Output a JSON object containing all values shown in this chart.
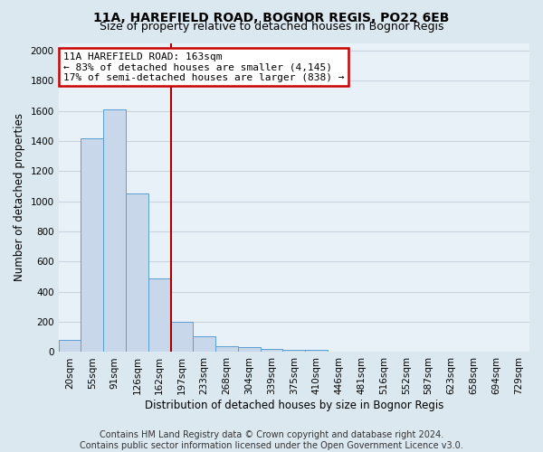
{
  "title_line1": "11A, HAREFIELD ROAD, BOGNOR REGIS, PO22 6EB",
  "title_line2": "Size of property relative to detached houses in Bognor Regis",
  "xlabel": "Distribution of detached houses by size in Bognor Regis",
  "ylabel": "Number of detached properties",
  "footer1": "Contains HM Land Registry data © Crown copyright and database right 2024.",
  "footer2": "Contains public sector information licensed under the Open Government Licence v3.0.",
  "bins": [
    "20sqm",
    "55sqm",
    "91sqm",
    "126sqm",
    "162sqm",
    "197sqm",
    "233sqm",
    "268sqm",
    "304sqm",
    "339sqm",
    "375sqm",
    "410sqm",
    "446sqm",
    "481sqm",
    "516sqm",
    "552sqm",
    "587sqm",
    "623sqm",
    "658sqm",
    "694sqm",
    "729sqm"
  ],
  "values": [
    80,
    1420,
    1610,
    1050,
    490,
    200,
    105,
    40,
    30,
    20,
    15,
    15,
    0,
    0,
    0,
    0,
    0,
    0,
    0,
    0,
    0
  ],
  "bar_color": "#c8d8ea",
  "bar_edge_color": "#5a9fd4",
  "vline_color": "#aa0000",
  "vline_bin_index": 4,
  "annotation_line1": "11A HAREFIELD ROAD: 163sqm",
  "annotation_line2": "← 83% of detached houses are smaller (4,145)",
  "annotation_line3": "17% of semi-detached houses are larger (838) →",
  "annotation_box_color": "white",
  "annotation_box_edge_color": "#cc0000",
  "ylim": [
    0,
    2050
  ],
  "yticks": [
    0,
    200,
    400,
    600,
    800,
    1000,
    1200,
    1400,
    1600,
    1800,
    2000
  ],
  "bg_color": "#dce8f0",
  "plot_bg_color": "#e8f0f8",
  "grid_color": "#c8d4e0",
  "title_fontsize": 10,
  "subtitle_fontsize": 9,
  "axis_label_fontsize": 8.5,
  "tick_fontsize": 7.5,
  "annotation_fontsize": 8,
  "footer_fontsize": 7
}
